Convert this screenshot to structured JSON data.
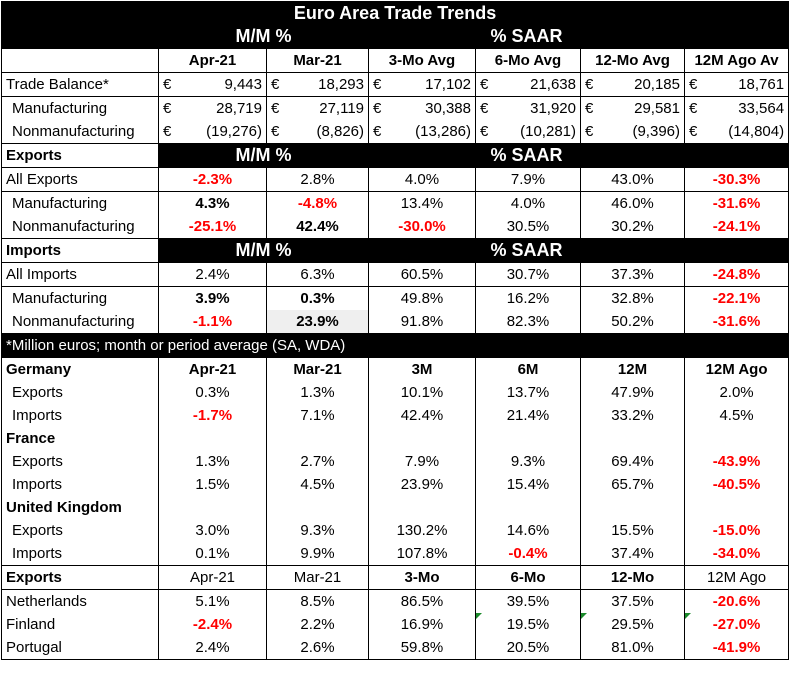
{
  "title": "Euro Area Trade Trends",
  "header1": {
    "mm": "M/M %",
    "saar": "% SAAR"
  },
  "col_headers": [
    "Apr-21",
    "Mar-21",
    "3-Mo Avg",
    "6-Mo Avg",
    "12-Mo Avg",
    "12M Ago Av"
  ],
  "currency": "€",
  "balance": [
    {
      "label": "Trade Balance*",
      "values": [
        "9,443",
        "18,293",
        "17,102",
        "21,638",
        "20,185",
        "18,761"
      ]
    },
    {
      "label": "Manufacturing",
      "values": [
        "28,719",
        "27,119",
        "30,388",
        "31,920",
        "29,581",
        "33,564"
      ]
    },
    {
      "label": "Nonmanufacturing",
      "values": [
        "(19,276)",
        "(8,826)",
        "(13,286)",
        "(10,281)",
        "(9,396)",
        "(14,804)"
      ]
    }
  ],
  "exports_section": {
    "label": "Exports",
    "mm": "M/M %",
    "saar": "% SAAR"
  },
  "exports": [
    {
      "label": "All Exports",
      "values": [
        "-2.3%",
        "2.8%",
        "4.0%",
        "7.9%",
        "43.0%",
        "-30.3%"
      ]
    },
    {
      "label": "Manufacturing",
      "values": [
        "4.3%",
        "-4.8%",
        "13.4%",
        "4.0%",
        "46.0%",
        "-31.6%"
      ]
    },
    {
      "label": "Nonmanufacturing",
      "values": [
        "-25.1%",
        "42.4%",
        "-30.0%",
        "30.5%",
        "30.2%",
        "-24.1%"
      ]
    }
  ],
  "imports_section": {
    "label": "Imports",
    "mm": "M/M %",
    "saar": "% SAAR"
  },
  "imports": [
    {
      "label": "All Imports",
      "values": [
        "2.4%",
        "6.3%",
        "60.5%",
        "30.7%",
        "37.3%",
        "-24.8%"
      ]
    },
    {
      "label": "Manufacturing",
      "values": [
        "3.9%",
        "0.3%",
        "49.8%",
        "16.2%",
        "32.8%",
        "-22.1%"
      ]
    },
    {
      "label": "Nonmanufacturing",
      "values": [
        "-1.1%",
        "23.9%",
        "91.8%",
        "82.3%",
        "50.2%",
        "-31.6%"
      ]
    }
  ],
  "note": "*Million euros; month or period average (SA, WDA)",
  "country_headers": [
    "Apr-21",
    "Mar-21",
    "3M",
    "6M",
    "12M",
    "12M Ago"
  ],
  "countries": [
    {
      "name": "Germany",
      "rows": [
        {
          "label": "Exports",
          "values": [
            "0.3%",
            "1.3%",
            "10.1%",
            "13.7%",
            "47.9%",
            "2.0%"
          ]
        },
        {
          "label": "Imports",
          "values": [
            "-1.7%",
            "7.1%",
            "42.4%",
            "21.4%",
            "33.2%",
            "4.5%"
          ]
        }
      ]
    },
    {
      "name": "France",
      "rows": [
        {
          "label": "Exports",
          "values": [
            "1.3%",
            "2.7%",
            "7.9%",
            "9.3%",
            "69.4%",
            "-43.9%"
          ]
        },
        {
          "label": "Imports",
          "values": [
            "1.5%",
            "4.5%",
            "23.9%",
            "15.4%",
            "65.7%",
            "-40.5%"
          ]
        }
      ]
    },
    {
      "name": "United Kingdom",
      "rows": [
        {
          "label": "Exports",
          "values": [
            "3.0%",
            "9.3%",
            "130.2%",
            "14.6%",
            "15.5%",
            "-15.0%"
          ]
        },
        {
          "label": "Imports",
          "values": [
            "0.1%",
            "9.9%",
            "107.8%",
            "-0.4%",
            "37.4%",
            "-34.0%"
          ]
        }
      ]
    }
  ],
  "exp2_section": {
    "label": "Exports",
    "headers": [
      "Apr-21",
      "Mar-21",
      "3-Mo",
      "6-Mo",
      "12-Mo",
      "12M Ago"
    ]
  },
  "exp2": [
    {
      "label": "Netherlands",
      "values": [
        "5.1%",
        "8.5%",
        "86.5%",
        "39.5%",
        "37.5%",
        "-20.6%"
      ]
    },
    {
      "label": "Finland",
      "values": [
        "-2.4%",
        "2.2%",
        "16.9%",
        "19.5%",
        "29.5%",
        "-27.0%"
      ]
    },
    {
      "label": "Portugal",
      "values": [
        "2.4%",
        "2.6%",
        "59.8%",
        "20.5%",
        "81.0%",
        "-41.9%"
      ]
    }
  ]
}
